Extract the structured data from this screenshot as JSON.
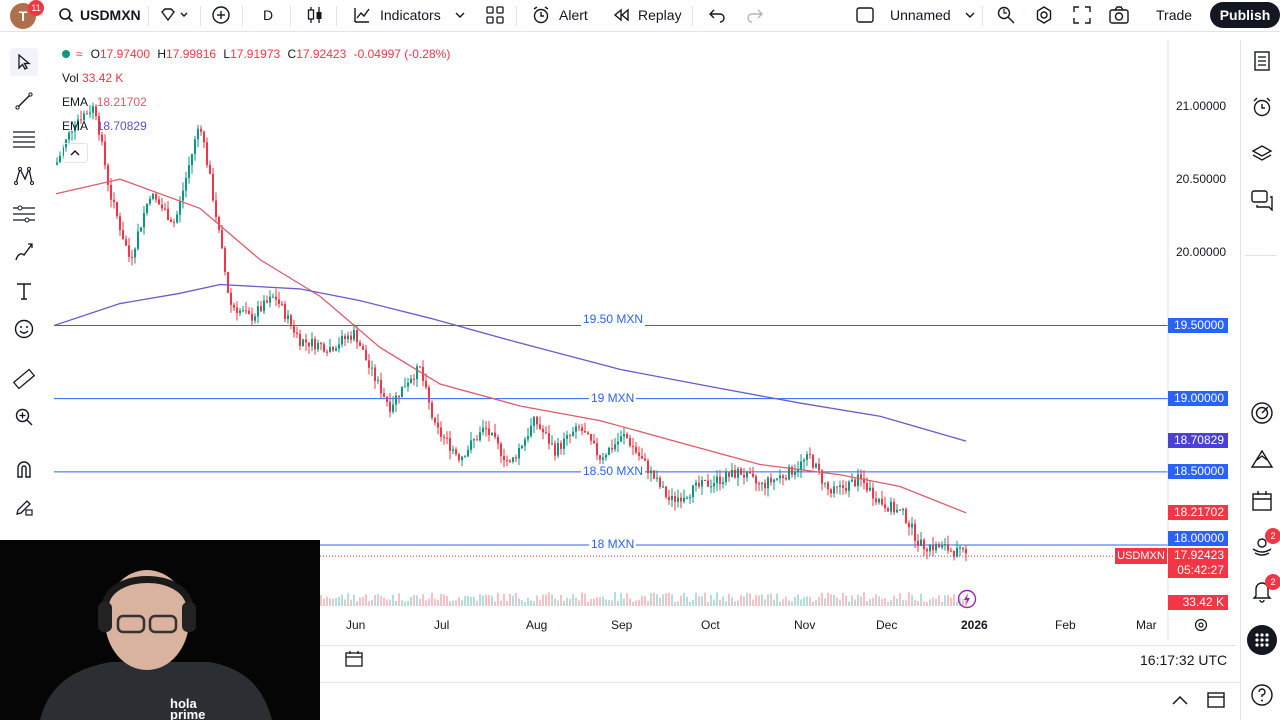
{
  "topbar": {
    "avatar_letter": "T",
    "notifications": "11",
    "symbol": "USDMXN",
    "interval": "D",
    "indicators": "Indicators",
    "alert": "Alert",
    "replay": "Replay",
    "layout_name": "Unnamed",
    "trade": "Trade",
    "publish": "Publish"
  },
  "legend": {
    "open_label": "O",
    "open": "17.97400",
    "high_label": "H",
    "high": "17.99816",
    "low_label": "L",
    "low": "17.91973",
    "close_label": "C",
    "close": "17.92423",
    "change": "-0.04997 (-0.28%)",
    "vol_label": "Vol",
    "vol": "33.42 K",
    "ema1_label": "EMA",
    "ema1": "18.21702",
    "ema2_label": "EMA",
    "ema2": "18.70829"
  },
  "price_axis": [
    "21.00000",
    "20.50000",
    "20.00000"
  ],
  "price_tags": {
    "level_1950": "19.50000",
    "level_1900": "19.00000",
    "ema_slow": "18.70829",
    "level_1850": "18.50000",
    "ema_fast": "18.21702",
    "level_1800": "18.00000",
    "symbol_tag": "USDMXN",
    "last_price": "17.92423",
    "countdown": "05:42:27",
    "volume": "33.42 K"
  },
  "hlines": [
    {
      "text": "19.50 MXN",
      "price": 19.5
    },
    {
      "text": "19 MXN",
      "price": 19.0
    },
    {
      "text": "18.50 MXN",
      "price": 18.5
    },
    {
      "text": "18 MXN",
      "price": 18.0
    }
  ],
  "time_axis": [
    "Jun",
    "Jul",
    "Aug",
    "Sep",
    "Oct",
    "Nov",
    "Dec",
    "2026",
    "Feb",
    "Mar"
  ],
  "clock": "16:17:32 UTC",
  "right_badges": {
    "alerts": "2",
    "notifications": "2"
  },
  "colors": {
    "up": "#089981",
    "down": "#f23645",
    "ema_fast": "#e05a6b",
    "ema_slow": "#6a5acd",
    "hline": "#2962ff",
    "accent": "#131722"
  },
  "webcam_caption": "hola prime"
}
